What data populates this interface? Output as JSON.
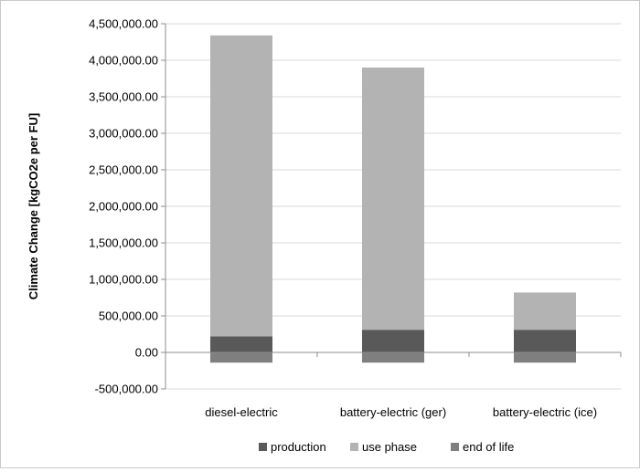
{
  "chart_data": {
    "type": "bar",
    "stacked": true,
    "title": "",
    "xlabel": "",
    "ylabel": "Climate Change [kgCO2e per FU]",
    "ylim": [
      -500000,
      4500000
    ],
    "ytick_step": 500000,
    "yticks": [
      "-500,000.00",
      "0.00",
      "500,000.00",
      "1,000,000.00",
      "1,500,000.00",
      "2,000,000.00",
      "2,500,000.00",
      "3,000,000.00",
      "3,500,000.00",
      "4,000,000.00",
      "4,500,000.00"
    ],
    "grid": true,
    "legend_position": "bottom",
    "categories": [
      "diesel-electric",
      "battery-electric (ger)",
      "battery-electric (ice)"
    ],
    "series": [
      {
        "name": "production",
        "color": "#595959",
        "values": [
          220000,
          310000,
          310000
        ]
      },
      {
        "name": "use phase",
        "color": "#b3b3b3",
        "values": [
          4120000,
          3590000,
          510000
        ]
      },
      {
        "name": "end of life",
        "color": "#7f7f7f",
        "values": [
          -140000,
          -140000,
          -140000
        ]
      }
    ]
  }
}
